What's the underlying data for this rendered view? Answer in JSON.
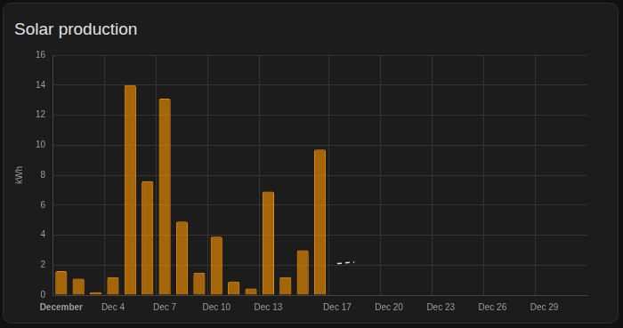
{
  "chart_data": {
    "type": "bar",
    "title": "Solar production",
    "y_label": "kWh",
    "categories": [
      "December",
      null,
      null,
      "Dec 4",
      null,
      null,
      "Dec 7",
      null,
      null,
      "Dec 10",
      null,
      null,
      "Dec 13",
      null,
      null,
      null,
      "Dec 17",
      null,
      null,
      "Dec 20",
      null,
      null,
      "Dec 23",
      null,
      null,
      "Dec 26",
      null,
      null,
      "Dec 29",
      null,
      null
    ],
    "series": [
      {
        "type": "bar",
        "color": "#ff9800",
        "values": [
          1.6,
          1.1,
          0.2,
          1.2,
          14.0,
          7.6,
          13.1,
          4.9,
          1.5,
          3.9,
          0.9,
          0.45,
          6.9,
          1.2,
          3.0,
          9.7,
          null,
          null,
          null,
          null,
          null,
          null,
          null,
          null,
          null,
          null,
          null,
          null,
          null,
          null,
          null
        ]
      },
      {
        "type": "line",
        "color": "#e0e0e0",
        "line_style": "dashed",
        "values": [
          null,
          null,
          null,
          null,
          null,
          null,
          null,
          null,
          null,
          null,
          null,
          null,
          null,
          null,
          null,
          null,
          2.1,
          2.2,
          null,
          null,
          null,
          null,
          null,
          null,
          null,
          null,
          null,
          null,
          null,
          null,
          null
        ]
      }
    ],
    "ylim": [
      0,
      16
    ],
    "yticks": [
      0,
      2,
      4,
      6,
      8,
      10,
      12,
      14,
      16
    ],
    "grid": true
  }
}
